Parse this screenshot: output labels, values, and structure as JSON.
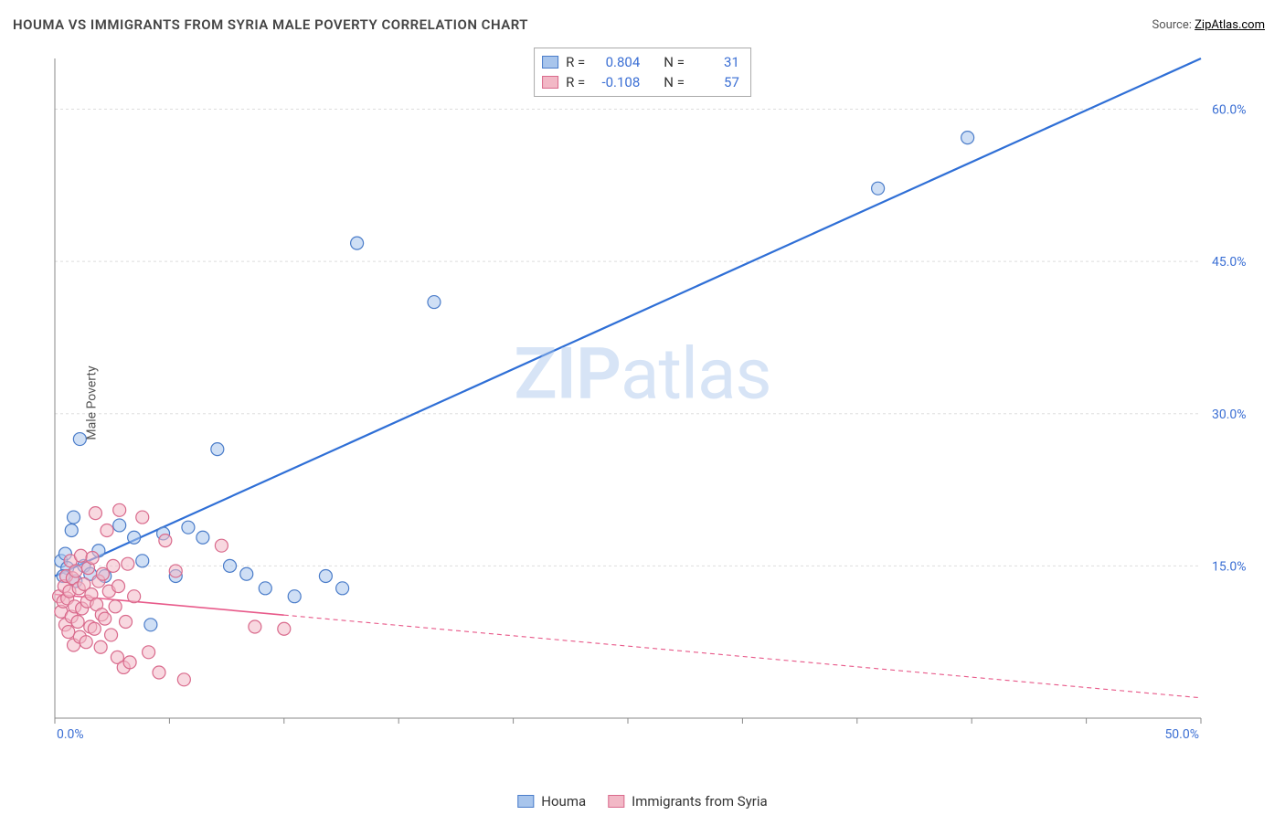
{
  "title": "HOUMA VS IMMIGRANTS FROM SYRIA MALE POVERTY CORRELATION CHART",
  "source_label": "Source: ",
  "source_name": "ZipAtlas.com",
  "y_axis_label": "Male Poverty",
  "watermark_a": "ZIP",
  "watermark_b": "atlas",
  "chart": {
    "type": "scatter",
    "xlim": [
      0,
      55
    ],
    "ylim": [
      0,
      65
    ],
    "y_ticks": [
      15,
      30,
      45,
      60
    ],
    "y_tick_labels": [
      "15.0%",
      "30.0%",
      "45.0%",
      "60.0%"
    ],
    "x_ticks": [
      0,
      5.5,
      11,
      16.5,
      22,
      27.5,
      33,
      38.5,
      44,
      49.5,
      55
    ],
    "x_tick_labels_shown": {
      "0": "0.0%",
      "55": "50.0%"
    },
    "background_color": "#ffffff",
    "grid_color": "#dddddd",
    "axis_color": "#888888",
    "tick_label_color": "#3b6fd4",
    "marker_radius": 7,
    "marker_opacity": 0.55,
    "series": [
      {
        "name": "Houma",
        "color_fill": "#a8c5ec",
        "color_stroke": "#4a7cc9",
        "r": "0.804",
        "n": "31",
        "trend": {
          "x1": 0,
          "y1": 14,
          "x2": 55,
          "y2": 65,
          "color": "#2f6fd6",
          "width": 2.2,
          "dash": null,
          "solid_until_x": 55
        },
        "points": [
          [
            0.3,
            15.5
          ],
          [
            0.5,
            16.2
          ],
          [
            0.6,
            14.8
          ],
          [
            0.8,
            18.5
          ],
          [
            0.9,
            19.8
          ],
          [
            1.0,
            13.5
          ],
          [
            1.2,
            27.5
          ],
          [
            1.4,
            15.0
          ],
          [
            1.7,
            14.2
          ],
          [
            2.1,
            16.5
          ],
          [
            2.4,
            14.0
          ],
          [
            3.1,
            19.0
          ],
          [
            3.8,
            17.8
          ],
          [
            4.2,
            15.5
          ],
          [
            4.6,
            9.2
          ],
          [
            5.2,
            18.2
          ],
          [
            5.8,
            14.0
          ],
          [
            6.4,
            18.8
          ],
          [
            7.1,
            17.8
          ],
          [
            7.8,
            26.5
          ],
          [
            8.4,
            15.0
          ],
          [
            9.2,
            14.2
          ],
          [
            10.1,
            12.8
          ],
          [
            11.5,
            12.0
          ],
          [
            13.0,
            14.0
          ],
          [
            13.8,
            12.8
          ],
          [
            14.5,
            46.8
          ],
          [
            18.2,
            41.0
          ],
          [
            39.5,
            52.2
          ],
          [
            43.8,
            57.2
          ],
          [
            0.4,
            14.0
          ]
        ]
      },
      {
        "name": "Immigrants from Syria",
        "color_fill": "#f2b8c6",
        "color_stroke": "#d96a8c",
        "r": "-0.108",
        "n": "57",
        "trend": {
          "x1": 0,
          "y1": 12.2,
          "x2": 55,
          "y2": 2.0,
          "color": "#e85a8a",
          "width": 1.6,
          "dash": "5,4",
          "solid_until_x": 11
        },
        "points": [
          [
            0.2,
            12.0
          ],
          [
            0.3,
            10.5
          ],
          [
            0.4,
            11.5
          ],
          [
            0.45,
            13.0
          ],
          [
            0.5,
            9.2
          ],
          [
            0.55,
            14.0
          ],
          [
            0.6,
            11.8
          ],
          [
            0.65,
            8.5
          ],
          [
            0.7,
            12.5
          ],
          [
            0.75,
            15.5
          ],
          [
            0.8,
            10.0
          ],
          [
            0.85,
            13.8
          ],
          [
            0.9,
            7.2
          ],
          [
            0.95,
            11.0
          ],
          [
            1.0,
            14.5
          ],
          [
            1.1,
            9.5
          ],
          [
            1.15,
            12.8
          ],
          [
            1.2,
            8.0
          ],
          [
            1.25,
            16.0
          ],
          [
            1.3,
            10.8
          ],
          [
            1.4,
            13.2
          ],
          [
            1.5,
            7.5
          ],
          [
            1.55,
            11.5
          ],
          [
            1.6,
            14.8
          ],
          [
            1.7,
            9.0
          ],
          [
            1.75,
            12.2
          ],
          [
            1.8,
            15.8
          ],
          [
            1.9,
            8.8
          ],
          [
            1.95,
            20.2
          ],
          [
            2.0,
            11.2
          ],
          [
            2.1,
            13.5
          ],
          [
            2.2,
            7.0
          ],
          [
            2.25,
            10.2
          ],
          [
            2.3,
            14.2
          ],
          [
            2.4,
            9.8
          ],
          [
            2.5,
            18.5
          ],
          [
            2.6,
            12.5
          ],
          [
            2.7,
            8.2
          ],
          [
            2.8,
            15.0
          ],
          [
            2.9,
            11.0
          ],
          [
            3.0,
            6.0
          ],
          [
            3.05,
            13.0
          ],
          [
            3.1,
            20.5
          ],
          [
            3.3,
            5.0
          ],
          [
            3.4,
            9.5
          ],
          [
            3.5,
            15.2
          ],
          [
            3.6,
            5.5
          ],
          [
            3.8,
            12.0
          ],
          [
            4.2,
            19.8
          ],
          [
            4.5,
            6.5
          ],
          [
            5.0,
            4.5
          ],
          [
            5.3,
            17.5
          ],
          [
            5.8,
            14.5
          ],
          [
            6.2,
            3.8
          ],
          [
            8.0,
            17.0
          ],
          [
            9.6,
            9.0
          ],
          [
            11.0,
            8.8
          ]
        ]
      }
    ]
  },
  "legend": {
    "series1_label": "Houma",
    "series2_label": "Immigrants from Syria"
  },
  "stats_labels": {
    "r": "R =",
    "n": "N ="
  }
}
